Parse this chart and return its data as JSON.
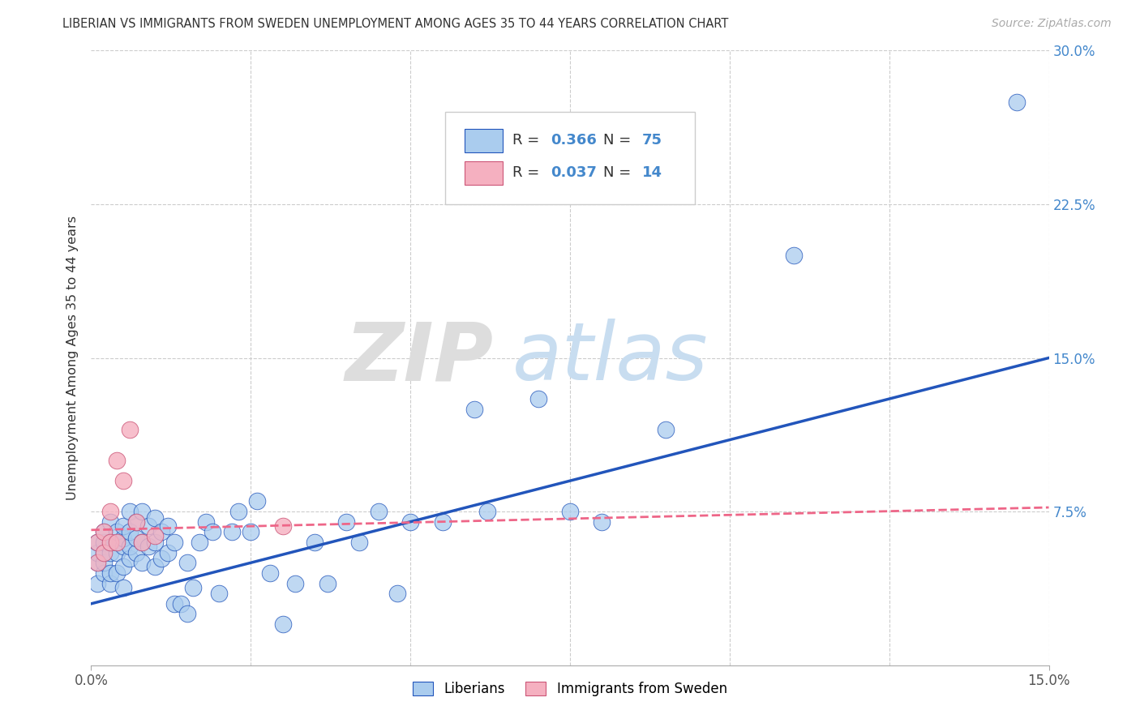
{
  "title": "LIBERIAN VS IMMIGRANTS FROM SWEDEN UNEMPLOYMENT AMONG AGES 35 TO 44 YEARS CORRELATION CHART",
  "source": "Source: ZipAtlas.com",
  "ylabel": "Unemployment Among Ages 35 to 44 years",
  "xlim": [
    0,
    0.15
  ],
  "ylim": [
    0,
    0.3
  ],
  "liberian_color": "#aaccee",
  "sweden_color": "#f5b0c0",
  "trend_liberian_color": "#2255bb",
  "trend_sweden_color": "#ee6688",
  "watermark_zip": "ZIP",
  "watermark_atlas": "atlas",
  "legend_label1": "Liberians",
  "legend_label2": "Immigrants from Sweden",
  "trend_lib_x0": 0.0,
  "trend_lib_y0": 0.03,
  "trend_lib_x1": 0.15,
  "trend_lib_y1": 0.15,
  "trend_swe_x0": 0.0,
  "trend_swe_y0": 0.066,
  "trend_swe_x1": 0.15,
  "trend_swe_y1": 0.077,
  "liberian_x": [
    0.001,
    0.001,
    0.001,
    0.001,
    0.002,
    0.002,
    0.002,
    0.002,
    0.002,
    0.003,
    0.003,
    0.003,
    0.003,
    0.003,
    0.004,
    0.004,
    0.004,
    0.004,
    0.005,
    0.005,
    0.005,
    0.005,
    0.005,
    0.006,
    0.006,
    0.006,
    0.006,
    0.007,
    0.007,
    0.007,
    0.008,
    0.008,
    0.008,
    0.009,
    0.009,
    0.01,
    0.01,
    0.01,
    0.011,
    0.011,
    0.012,
    0.012,
    0.013,
    0.013,
    0.014,
    0.015,
    0.015,
    0.016,
    0.017,
    0.018,
    0.019,
    0.02,
    0.022,
    0.023,
    0.025,
    0.026,
    0.028,
    0.03,
    0.032,
    0.035,
    0.037,
    0.04,
    0.042,
    0.045,
    0.048,
    0.05,
    0.055,
    0.06,
    0.062,
    0.07,
    0.075,
    0.08,
    0.09,
    0.11,
    0.145
  ],
  "liberian_y": [
    0.04,
    0.05,
    0.055,
    0.06,
    0.045,
    0.05,
    0.055,
    0.06,
    0.065,
    0.04,
    0.045,
    0.055,
    0.06,
    0.07,
    0.045,
    0.055,
    0.06,
    0.065,
    0.038,
    0.048,
    0.058,
    0.062,
    0.068,
    0.052,
    0.058,
    0.065,
    0.075,
    0.055,
    0.062,
    0.07,
    0.05,
    0.06,
    0.075,
    0.058,
    0.068,
    0.048,
    0.06,
    0.072,
    0.052,
    0.065,
    0.055,
    0.068,
    0.03,
    0.06,
    0.03,
    0.025,
    0.05,
    0.038,
    0.06,
    0.07,
    0.065,
    0.035,
    0.065,
    0.075,
    0.065,
    0.08,
    0.045,
    0.02,
    0.04,
    0.06,
    0.04,
    0.07,
    0.06,
    0.075,
    0.035,
    0.07,
    0.07,
    0.125,
    0.075,
    0.13,
    0.075,
    0.07,
    0.115,
    0.2,
    0.275
  ],
  "sweden_x": [
    0.001,
    0.001,
    0.002,
    0.002,
    0.003,
    0.003,
    0.004,
    0.004,
    0.005,
    0.006,
    0.007,
    0.008,
    0.01,
    0.03
  ],
  "sweden_y": [
    0.05,
    0.06,
    0.055,
    0.065,
    0.06,
    0.075,
    0.06,
    0.1,
    0.09,
    0.115,
    0.07,
    0.06,
    0.063,
    0.068
  ]
}
